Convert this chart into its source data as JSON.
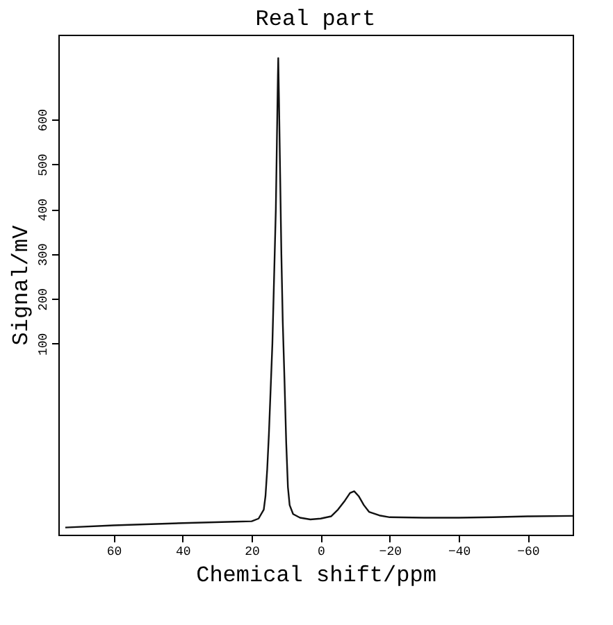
{
  "chart_data": {
    "type": "line",
    "title": "Real part",
    "xlabel": "Chemical shift/ppm",
    "ylabel": "Signal/mV",
    "x": [
      74,
      60,
      40,
      25,
      20,
      18,
      16.5,
      16,
      15.5,
      15,
      14.5,
      14,
      13.5,
      13,
      12.7,
      12.4,
      12.3,
      12.1,
      11.8,
      11.4,
      11,
      10.5,
      10,
      9.5,
      9,
      8,
      6,
      3,
      0,
      -3,
      -5,
      -7,
      -8.5,
      -9.7,
      -11,
      -12.5,
      -14,
      -17,
      -20,
      -30,
      -40,
      -50,
      -60,
      -73
    ],
    "series": [
      {
        "color": "#111111",
        "values": [
          -310,
          -305,
          -300,
          -297,
          -296,
          -290,
          -270,
          -240,
          -180,
          -100,
          0,
          100,
          250,
          400,
          550,
          700,
          737,
          650,
          500,
          300,
          150,
          20,
          -120,
          -220,
          -260,
          -280,
          -288,
          -292,
          -290,
          -285,
          -270,
          -250,
          -233,
          -229,
          -240,
          -260,
          -275,
          -283,
          -287,
          -288,
          -288,
          -287,
          -285,
          -284
        ]
      }
    ],
    "xlim": [
      76,
      -73
    ],
    "ylim": [
      -326,
      789
    ],
    "xticks": [
      60,
      40,
      20,
      0,
      -20,
      -40,
      -60
    ],
    "yticks": [
      100,
      200,
      300,
      400,
      500,
      600
    ],
    "grid": false,
    "marker": "none",
    "line_style": "solid"
  }
}
